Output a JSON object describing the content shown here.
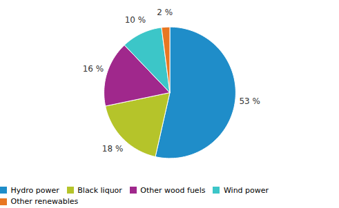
{
  "chart_data": {
    "type": "pie",
    "categories": [
      "Hydro power",
      "Black liquor",
      "Other wood fuels",
      "Wind power",
      "Other renewables"
    ],
    "values": [
      53,
      18,
      16,
      10,
      2
    ],
    "value_labels": [
      "53 %",
      "18 %",
      "16 %",
      "10 %",
      "2 %"
    ],
    "colors": [
      "#1f8dc9",
      "#b5c42a",
      "#a0288c",
      "#3cc6c8",
      "#e87722"
    ],
    "data_labels": true,
    "legend": "bottom"
  }
}
